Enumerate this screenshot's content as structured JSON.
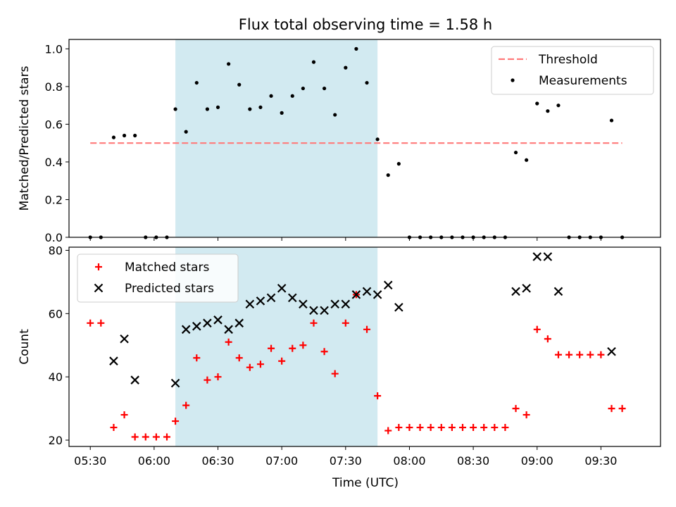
{
  "chart_data": {
    "title": "Flux total observing time = 1.58 h",
    "xlabel": "Time (UTC)",
    "x_ticks": [
      "05:30",
      "06:00",
      "06:30",
      "07:00",
      "07:30",
      "08:00",
      "08:30",
      "09:00",
      "09:30"
    ],
    "x_range": [
      "05:20",
      "09:58"
    ],
    "shaded_interval": {
      "start": "06:10",
      "end": "07:45",
      "color": "#add8e6"
    },
    "panels": [
      {
        "type": "scatter",
        "ylabel": "Matched/Predicted stars",
        "ylim": [
          0,
          1.05
        ],
        "y_ticks": [
          0.0,
          0.2,
          0.4,
          0.6,
          0.8,
          1.0
        ],
        "legend": {
          "placement": "top-right"
        },
        "threshold": {
          "name": "Threshold",
          "value": 0.5,
          "x_range": [
            "05:30",
            "09:40"
          ],
          "color": "#ff7a7a",
          "style": "dashed"
        },
        "series": [
          {
            "name": "Measurements",
            "color": "#000000",
            "marker": "dot",
            "points": [
              [
                "05:30",
                0.0
              ],
              [
                "05:35",
                0.0
              ],
              [
                "05:41",
                0.53
              ],
              [
                "05:46",
                0.54
              ],
              [
                "05:51",
                0.54
              ],
              [
                "05:56",
                0.0
              ],
              [
                "06:01",
                0.0
              ],
              [
                "06:06",
                0.0
              ],
              [
                "06:10",
                0.68
              ],
              [
                "06:15",
                0.56
              ],
              [
                "06:20",
                0.82
              ],
              [
                "06:25",
                0.68
              ],
              [
                "06:30",
                0.69
              ],
              [
                "06:35",
                0.92
              ],
              [
                "06:40",
                0.81
              ],
              [
                "06:45",
                0.68
              ],
              [
                "06:50",
                0.69
              ],
              [
                "06:55",
                0.75
              ],
              [
                "07:00",
                0.66
              ],
              [
                "07:05",
                0.75
              ],
              [
                "07:10",
                0.79
              ],
              [
                "07:15",
                0.93
              ],
              [
                "07:20",
                0.79
              ],
              [
                "07:25",
                0.65
              ],
              [
                "07:30",
                0.9
              ],
              [
                "07:35",
                1.0
              ],
              [
                "07:40",
                0.82
              ],
              [
                "07:45",
                0.52
              ],
              [
                "07:50",
                0.33
              ],
              [
                "07:55",
                0.39
              ],
              [
                "08:00",
                0.0
              ],
              [
                "08:05",
                0.0
              ],
              [
                "08:10",
                0.0
              ],
              [
                "08:15",
                0.0
              ],
              [
                "08:20",
                0.0
              ],
              [
                "08:25",
                0.0
              ],
              [
                "08:30",
                0.0
              ],
              [
                "08:35",
                0.0
              ],
              [
                "08:40",
                0.0
              ],
              [
                "08:45",
                0.0
              ],
              [
                "08:50",
                0.45
              ],
              [
                "08:55",
                0.41
              ],
              [
                "09:00",
                0.71
              ],
              [
                "09:05",
                0.67
              ],
              [
                "09:10",
                0.7
              ],
              [
                "09:15",
                0.0
              ],
              [
                "09:20",
                0.0
              ],
              [
                "09:25",
                0.0
              ],
              [
                "09:30",
                0.0
              ],
              [
                "09:35",
                0.62
              ],
              [
                "09:40",
                0.0
              ]
            ]
          }
        ]
      },
      {
        "type": "scatter",
        "ylabel": "Count",
        "ylim": [
          18,
          81
        ],
        "y_ticks": [
          20,
          40,
          60,
          80
        ],
        "legend": {
          "placement": "top-left"
        },
        "series": [
          {
            "name": "Matched stars",
            "color": "#ff0000",
            "marker": "plus",
            "points": [
              [
                "05:30",
                57
              ],
              [
                "05:35",
                57
              ],
              [
                "05:41",
                24
              ],
              [
                "05:46",
                28
              ],
              [
                "05:51",
                21
              ],
              [
                "05:56",
                21
              ],
              [
                "06:01",
                21
              ],
              [
                "06:06",
                21
              ],
              [
                "06:10",
                26
              ],
              [
                "06:15",
                31
              ],
              [
                "06:20",
                46
              ],
              [
                "06:25",
                39
              ],
              [
                "06:30",
                40
              ],
              [
                "06:35",
                51
              ],
              [
                "06:40",
                46
              ],
              [
                "06:45",
                43
              ],
              [
                "06:50",
                44
              ],
              [
                "06:55",
                49
              ],
              [
                "07:00",
                45
              ],
              [
                "07:05",
                49
              ],
              [
                "07:10",
                50
              ],
              [
                "07:15",
                57
              ],
              [
                "07:20",
                48
              ],
              [
                "07:25",
                41
              ],
              [
                "07:30",
                57
              ],
              [
                "07:35",
                66
              ],
              [
                "07:40",
                55
              ],
              [
                "07:45",
                34
              ],
              [
                "07:50",
                23
              ],
              [
                "07:55",
                24
              ],
              [
                "08:00",
                24
              ],
              [
                "08:05",
                24
              ],
              [
                "08:10",
                24
              ],
              [
                "08:15",
                24
              ],
              [
                "08:20",
                24
              ],
              [
                "08:25",
                24
              ],
              [
                "08:30",
                24
              ],
              [
                "08:35",
                24
              ],
              [
                "08:40",
                24
              ],
              [
                "08:45",
                24
              ],
              [
                "08:50",
                30
              ],
              [
                "08:55",
                28
              ],
              [
                "09:00",
                55
              ],
              [
                "09:05",
                52
              ],
              [
                "09:10",
                47
              ],
              [
                "09:15",
                47
              ],
              [
                "09:20",
                47
              ],
              [
                "09:25",
                47
              ],
              [
                "09:30",
                47
              ],
              [
                "09:35",
                30
              ],
              [
                "09:40",
                30
              ]
            ]
          },
          {
            "name": "Predicted stars",
            "color": "#000000",
            "marker": "x",
            "points": [
              [
                "05:41",
                45
              ],
              [
                "05:46",
                52
              ],
              [
                "05:51",
                39
              ],
              [
                "06:10",
                38
              ],
              [
                "06:15",
                55
              ],
              [
                "06:20",
                56
              ],
              [
                "06:25",
                57
              ],
              [
                "06:30",
                58
              ],
              [
                "06:35",
                55
              ],
              [
                "06:40",
                57
              ],
              [
                "06:45",
                63
              ],
              [
                "06:50",
                64
              ],
              [
                "06:55",
                65
              ],
              [
                "07:00",
                68
              ],
              [
                "07:05",
                65
              ],
              [
                "07:10",
                63
              ],
              [
                "07:15",
                61
              ],
              [
                "07:20",
                61
              ],
              [
                "07:25",
                63
              ],
              [
                "07:30",
                63
              ],
              [
                "07:35",
                66
              ],
              [
                "07:40",
                67
              ],
              [
                "07:45",
                66
              ],
              [
                "07:50",
                69
              ],
              [
                "07:55",
                62
              ],
              [
                "08:50",
                67
              ],
              [
                "08:55",
                68
              ],
              [
                "09:00",
                78
              ],
              [
                "09:05",
                78
              ],
              [
                "09:10",
                67
              ],
              [
                "09:35",
                48
              ]
            ]
          }
        ]
      }
    ]
  }
}
